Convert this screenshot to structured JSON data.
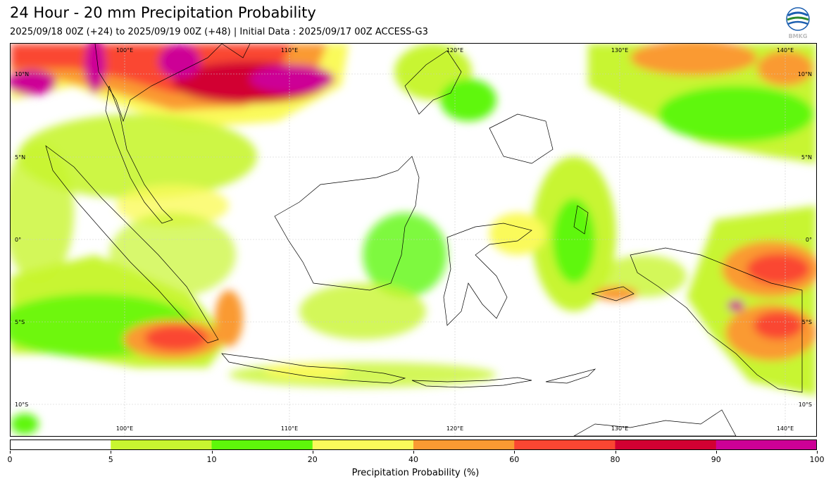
{
  "header": {
    "title": "24 Hour - 20 mm Precipitation Probability",
    "subtitle": "2025/09/18 00Z (+24) to 2025/09/19 00Z (+48) | Initial Data : 2025/09/17 00Z ACCESS-G3",
    "logo_text": "BMKG"
  },
  "map": {
    "lon_labels": [
      "100°E",
      "110°E",
      "120°E",
      "130°E",
      "140°E"
    ],
    "lat_labels": [
      "10°N",
      "5°N",
      "0°",
      "5°S",
      "10°S"
    ]
  },
  "colorbar": {
    "label": "Precipitation Probability (%)",
    "ticks": [
      "0",
      "5",
      "10",
      "20",
      "40",
      "60",
      "80",
      "90",
      "100"
    ],
    "colors": [
      "#ffffff",
      "#c8f530",
      "#5ef70a",
      "#fafa5a",
      "#fa9a32",
      "#fa4632",
      "#d20032",
      "#cd0096"
    ]
  }
}
